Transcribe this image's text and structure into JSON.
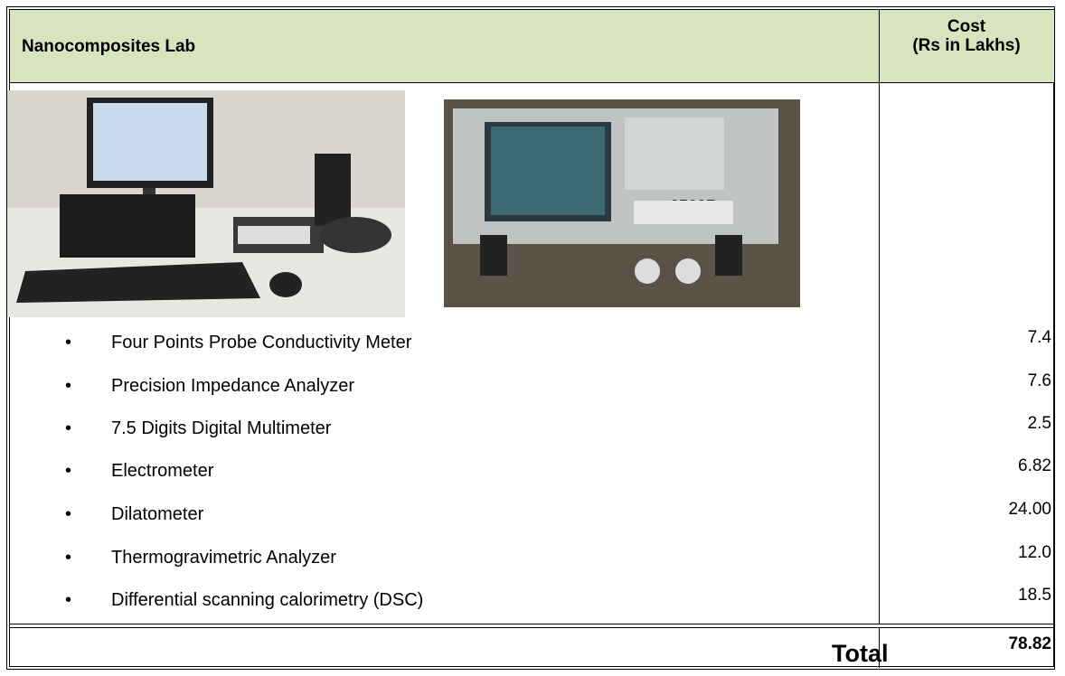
{
  "header": {
    "title": "Nanocomposites Lab",
    "cost_title": [
      "Cost",
      "(Rs in Lakhs)"
    ]
  },
  "items": [
    {
      "name": "Four Points Probe Conductivity Meter",
      "cost": "7.4"
    },
    {
      "name": "Precision Impedance Analyzer",
      "cost": "7.6"
    },
    {
      "name": "7.5 Digits Digital Multimeter",
      "cost": "2.5"
    },
    {
      "name": "Electrometer",
      "cost": "6.82"
    },
    {
      "name": "Dilatometer",
      "cost": "24.00"
    },
    {
      "name": "Thermogravimetric Analyzer",
      "cost": "12.0"
    },
    {
      "name": "Differential scanning calorimetry (DSC)",
      "cost": "18.5"
    }
  ],
  "total": {
    "label": "Total",
    "value": "78.82"
  }
}
